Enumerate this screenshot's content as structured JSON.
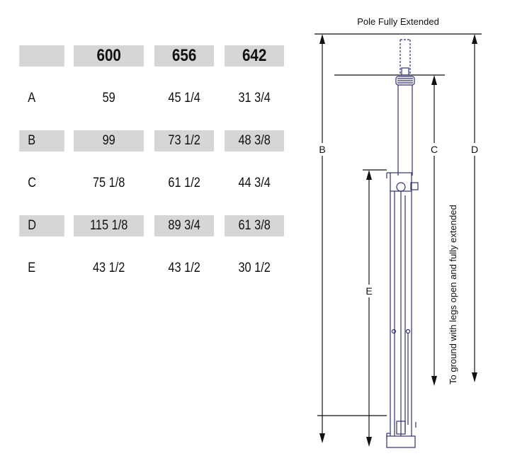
{
  "table": {
    "headers": [
      "",
      "600",
      "656",
      "642"
    ],
    "rows": [
      {
        "label": "A",
        "values": [
          "59",
          "45 1/4",
          "31 3/4"
        ]
      },
      {
        "label": "B",
        "values": [
          "99",
          "73 1/2",
          "48 3/8"
        ]
      },
      {
        "label": "C",
        "values": [
          "75 1/8",
          "61 1/2",
          "44 3/4"
        ]
      },
      {
        "label": "D",
        "values": [
          "115 1/8",
          "89 3/4",
          "61 3/8"
        ]
      },
      {
        "label": "E",
        "values": [
          "43 1/2",
          "43 1/2",
          "30 1/2"
        ]
      }
    ]
  },
  "diagram": {
    "title": "Pole Fully Extended",
    "dimension_labels": {
      "b": "B",
      "c": "C",
      "d": "D",
      "e": "E"
    },
    "vertical_note": "To ground with legs open and fully extended",
    "line_color": "#2f2f7a"
  }
}
